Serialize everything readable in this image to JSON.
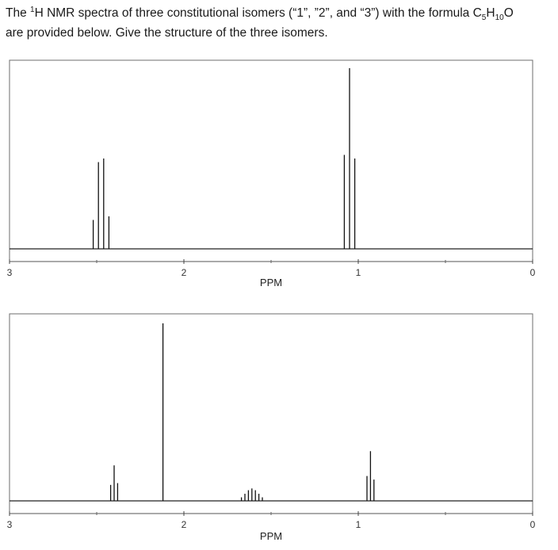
{
  "question": {
    "text_1": "The ",
    "sup": "1",
    "text_2": "H NMR spectra of three constitutional isomers (“1”, ”2”, and “3”) with the formula C",
    "sub_c": "5",
    "text_3": "H",
    "sub_h": "10",
    "text_4": "O",
    "text_5": "are provided below. Give the structure of the three isomers."
  },
  "chart_data": [
    {
      "type": "line",
      "title": "",
      "xlabel": "PPM",
      "ylabel": "",
      "xlim": [
        3,
        0
      ],
      "x_reversed": true,
      "ylim": [
        0,
        1
      ],
      "ticks": [
        3,
        2,
        1,
        0
      ],
      "grid": false,
      "peaks": [
        {
          "ppm": 2.52,
          "height": 0.16
        },
        {
          "ppm": 2.49,
          "height": 0.48
        },
        {
          "ppm": 2.46,
          "height": 0.5
        },
        {
          "ppm": 2.43,
          "height": 0.18
        },
        {
          "ppm": 1.08,
          "height": 0.52
        },
        {
          "ppm": 1.05,
          "height": 1.0
        },
        {
          "ppm": 1.02,
          "height": 0.5
        }
      ]
    },
    {
      "type": "line",
      "title": "",
      "xlabel": "PPM",
      "ylabel": "",
      "xlim": [
        3,
        0
      ],
      "x_reversed": true,
      "ylim": [
        0,
        1
      ],
      "ticks": [
        3,
        2,
        1,
        0
      ],
      "grid": false,
      "peaks": [
        {
          "ppm": 2.42,
          "height": 0.09
        },
        {
          "ppm": 2.4,
          "height": 0.2
        },
        {
          "ppm": 2.38,
          "height": 0.1
        },
        {
          "ppm": 2.12,
          "height": 1.0
        },
        {
          "ppm": 1.67,
          "height": 0.02
        },
        {
          "ppm": 1.65,
          "height": 0.04
        },
        {
          "ppm": 1.63,
          "height": 0.06
        },
        {
          "ppm": 1.61,
          "height": 0.07
        },
        {
          "ppm": 1.59,
          "height": 0.06
        },
        {
          "ppm": 1.57,
          "height": 0.04
        },
        {
          "ppm": 1.55,
          "height": 0.02
        },
        {
          "ppm": 0.95,
          "height": 0.14
        },
        {
          "ppm": 0.93,
          "height": 0.28
        },
        {
          "ppm": 0.91,
          "height": 0.12
        }
      ]
    }
  ]
}
